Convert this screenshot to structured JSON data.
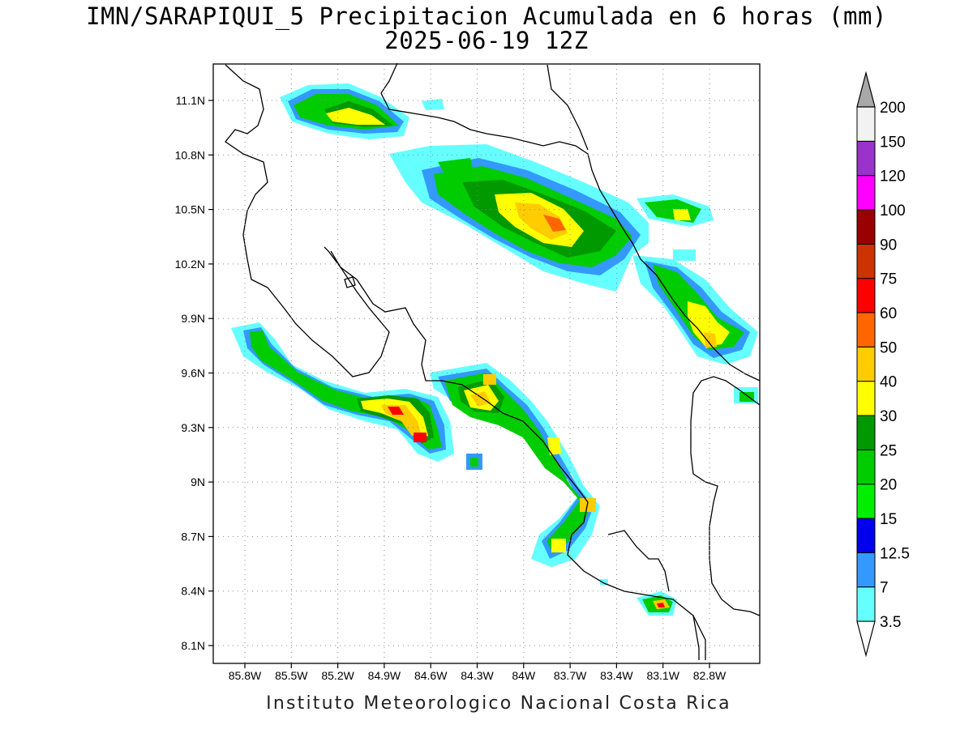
{
  "map": {
    "title_line1": "IMN/SARAPIQUI_5 Precipitacion Acumulada en 6 horas (mm)",
    "title_line2": "2025-06-19 12Z",
    "footer": "Instituto Meteorologico Nacional Costa Rica",
    "lat_labels": [
      "11.1N",
      "10.8N",
      "10.5N",
      "10.2N",
      "9.9N",
      "9.6N",
      "9.3N",
      "9N",
      "8.7N",
      "8.4N",
      "8.1N"
    ],
    "lon_labels": [
      "85.8W",
      "85.5W",
      "85.2W",
      "84.9W",
      "84.6W",
      "84.3W",
      "84W",
      "83.7W",
      "83.4W",
      "83.1W",
      "82.8W"
    ]
  },
  "colorbar": {
    "labels": [
      "3.5",
      "7",
      "12.5",
      "15",
      "20",
      "25",
      "30",
      "40",
      "50",
      "60",
      "75",
      "90",
      "100",
      "120",
      "150",
      "200"
    ],
    "colors": [
      "#66ffff",
      "#3399ff",
      "#0000ee",
      "#00ee00",
      "#00cc00",
      "#009900",
      "#ffff00",
      "#ffcc00",
      "#ff6600",
      "#ff0000",
      "#cc3300",
      "#990000",
      "#ff00ff",
      "#9933cc",
      "#f2f2f2",
      "#a8a8a8"
    ]
  }
}
